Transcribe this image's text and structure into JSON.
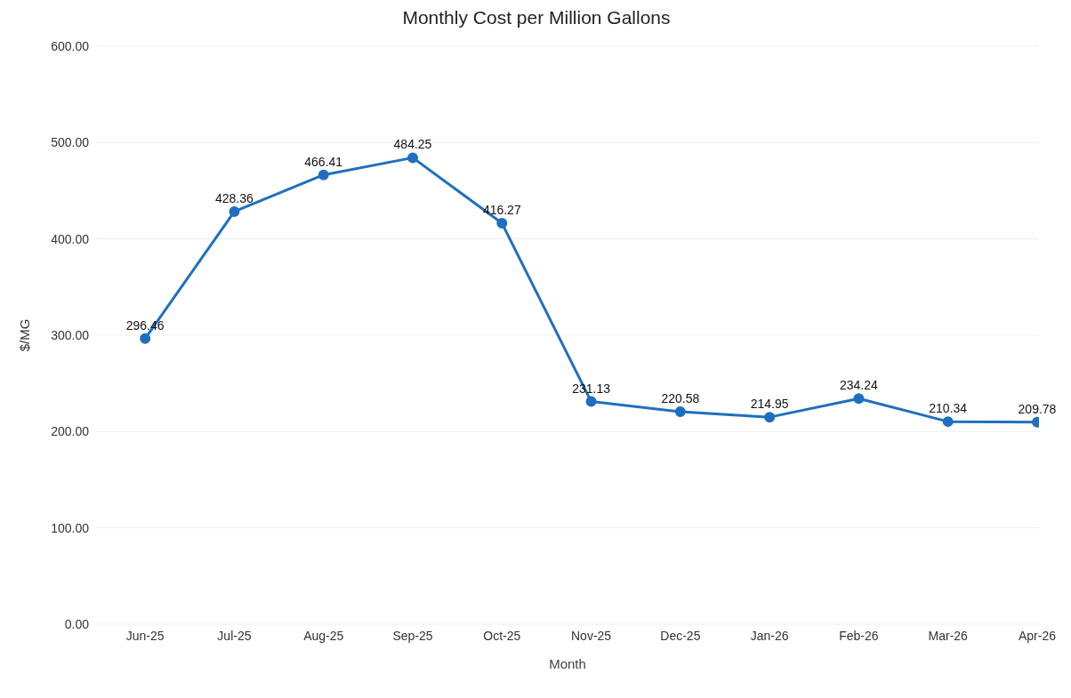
{
  "chart_data": {
    "type": "line",
    "title": "Monthly Cost per Million Gallons",
    "xlabel": "Month",
    "ylabel": "$/MG",
    "categories": [
      "Jun-25",
      "Jul-25",
      "Aug-25",
      "Sep-25",
      "Oct-25",
      "Nov-25",
      "Dec-25",
      "Jan-26",
      "Feb-26",
      "Mar-26",
      "Apr-26"
    ],
    "series": [
      {
        "color": "#1f6fbf",
        "values": [
          296.46,
          428.36,
          466.41,
          484.25,
          416.27,
          231.13,
          220.58,
          214.95,
          234.24,
          210.34,
          209.78
        ]
      }
    ],
    "ylim": [
      0,
      600
    ],
    "yticks": [
      {
        "value": 0,
        "label": "0.00"
      },
      {
        "value": 100,
        "label": "100.00"
      },
      {
        "value": 200,
        "label": "200.00"
      },
      {
        "value": 300,
        "label": "300.00"
      },
      {
        "value": 400,
        "label": "400.00"
      },
      {
        "value": 500,
        "label": "500.00"
      },
      {
        "value": 600,
        "label": "600.00"
      }
    ],
    "grid": "y",
    "legend": false,
    "marker": "circle",
    "line_style": "solid",
    "data_labels": true
  }
}
